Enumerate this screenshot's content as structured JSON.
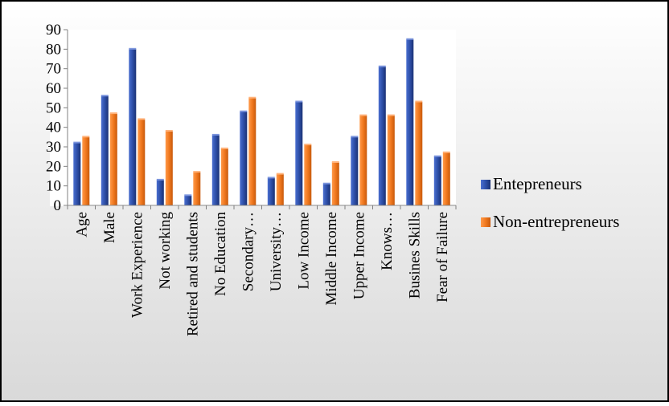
{
  "chart_data": {
    "type": "bar",
    "title": "",
    "xlabel": "",
    "ylabel": "",
    "ylim": [
      0,
      90
    ],
    "yticks": [
      0,
      10,
      20,
      30,
      40,
      50,
      60,
      70,
      80,
      90
    ],
    "grid": false,
    "legend_position": "right",
    "categories": [
      "Age",
      "Male",
      "Work Experience",
      "Not working",
      "Retired and students",
      "No Education",
      "Secondary…",
      "University…",
      "Low Income",
      "Middle Income",
      "Upper Income",
      "Knows…",
      "Busines Skills",
      "Fear of Failure"
    ],
    "series": [
      {
        "name": "Entepreneurs",
        "color": "#2E4FA8",
        "values": [
          32,
          56,
          80,
          13,
          5,
          36,
          48,
          14,
          53,
          11,
          35,
          71,
          85,
          25
        ]
      },
      {
        "name": "Non-entrepreneurs",
        "color": "#F0781E",
        "values": [
          35,
          47,
          44,
          38,
          17,
          29,
          55,
          16,
          31,
          22,
          46,
          46,
          53,
          27
        ]
      }
    ]
  },
  "colors": {
    "frame_gradient_top": "#ffffff",
    "frame_gradient_bottom": "#d9d9d9",
    "plot_background": "#ffffff"
  }
}
